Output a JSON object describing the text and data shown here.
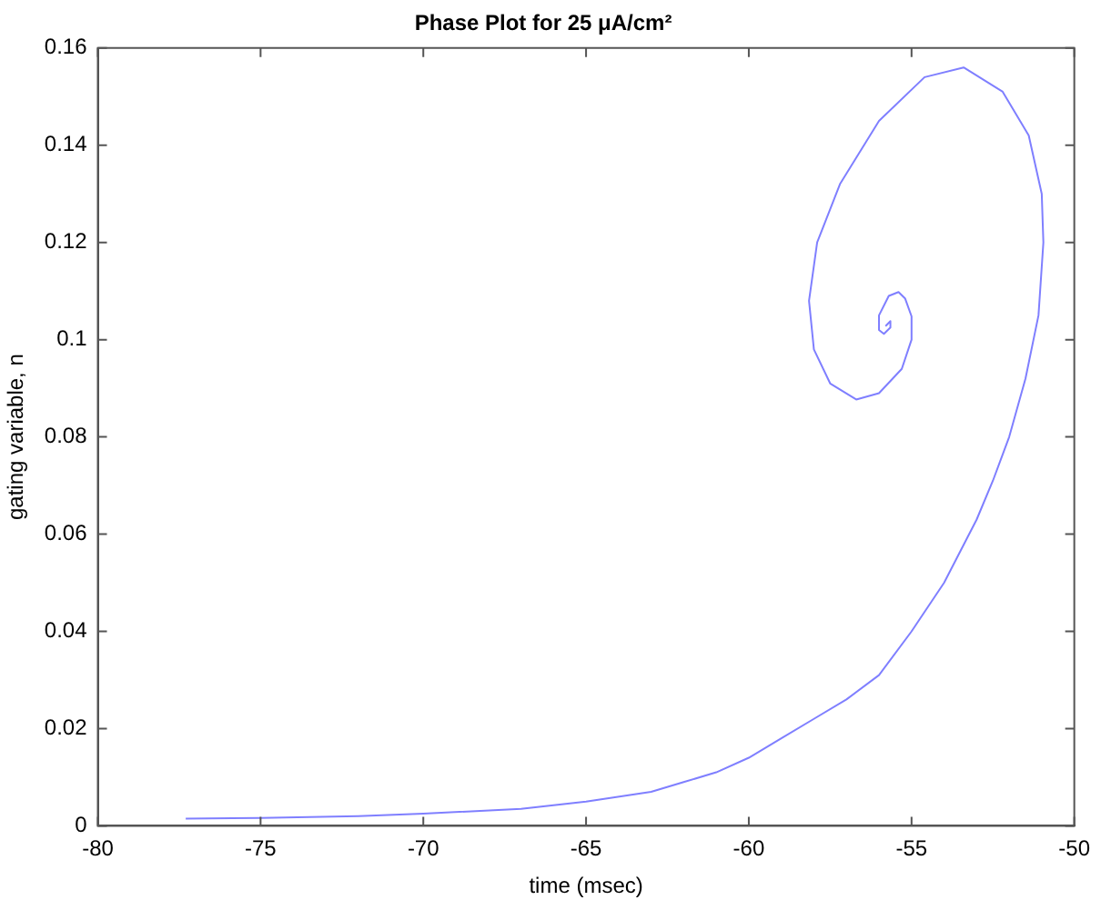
{
  "chart_data": {
    "type": "line",
    "title": "Phase Plot for 25 μA/cm²",
    "xlabel": "time (msec)",
    "ylabel": "gating variable, n",
    "xlim": [
      -80,
      -50
    ],
    "xticks": [
      -80,
      -75,
      -70,
      -65,
      -60,
      -55,
      -50
    ],
    "ylim": [
      0,
      0.16
    ],
    "yticks": [
      0,
      0.02,
      0.04,
      0.06,
      0.08,
      0.1,
      0.12,
      0.14,
      0.16
    ],
    "grid": false,
    "legend": false,
    "marker": "none",
    "line_style": "solid",
    "series": [
      {
        "color": "#7f7fff",
        "x": [
          -77.3,
          -75,
          -72,
          -70,
          -67,
          -65,
          -63,
          -62,
          -61,
          -60,
          -59,
          -58,
          -57,
          -56,
          -55,
          -54,
          -53,
          -52.5,
          -52,
          -51.5,
          -51.1,
          -50.95,
          -51.0,
          -51.4,
          -52.2,
          -53.4,
          -54.6,
          -56,
          -57.2,
          -57.9,
          -58.15,
          -58.0,
          -57.5,
          -56.7,
          -56.0,
          -55.3,
          -55.0,
          -55.0,
          -55.2,
          -55.4,
          -55.7,
          -56.0,
          -56.0,
          -55.85,
          -55.65,
          -55.65,
          -55.8
        ],
        "values": [
          0.0015,
          0.0016,
          0.002,
          0.0025,
          0.0035,
          0.005,
          0.007,
          0.009,
          0.011,
          0.014,
          0.018,
          0.022,
          0.026,
          0.031,
          0.04,
          0.05,
          0.063,
          0.071,
          0.08,
          0.092,
          0.105,
          0.12,
          0.13,
          0.142,
          0.151,
          0.156,
          0.154,
          0.145,
          0.132,
          0.12,
          0.108,
          0.098,
          0.091,
          0.0877,
          0.089,
          0.094,
          0.1,
          0.1048,
          0.1085,
          0.1098,
          0.109,
          0.105,
          0.102,
          0.1012,
          0.1025,
          0.1038,
          0.1028
        ]
      }
    ]
  }
}
